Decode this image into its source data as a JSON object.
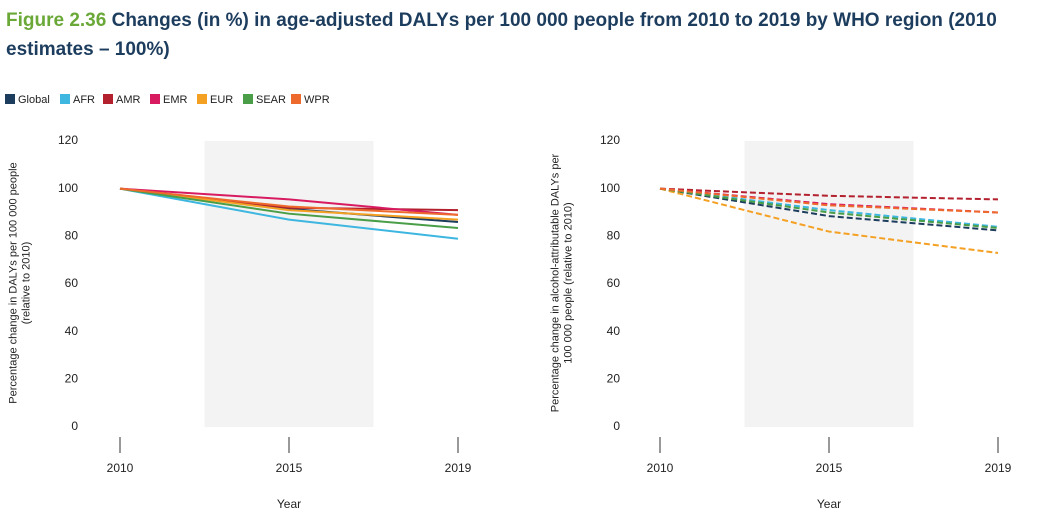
{
  "figure_label": "Figure 2.36",
  "title": "Changes (in %) in age-adjusted DALYs per 100 000 people from 2010 to 2019 by WHO region (2010 estimates – 100%)",
  "chart_data": [
    {
      "type": "line",
      "line_style": "solid",
      "categories": [
        "2010",
        "2015",
        "2019"
      ],
      "xlabel": "Year",
      "ylabel": [
        "Percentage change in DALYs per 100 000 people",
        "(relative to 2010)"
      ],
      "ylim": [
        0,
        120
      ],
      "yticks": [
        0,
        20,
        40,
        60,
        80,
        100,
        120
      ],
      "grid": false,
      "series": [
        {
          "name": "Global",
          "color": "#1d3d5e",
          "values": [
            100,
            91.5,
            86
          ]
        },
        {
          "name": "AFR",
          "color": "#3db6e0",
          "values": [
            100,
            87,
            79
          ]
        },
        {
          "name": "AMR",
          "color": "#b3202e",
          "values": [
            100,
            92,
            91
          ]
        },
        {
          "name": "EMR",
          "color": "#d81b60",
          "values": [
            100,
            95.5,
            89
          ]
        },
        {
          "name": "EUR",
          "color": "#f4a023",
          "values": [
            100,
            91,
            87
          ]
        },
        {
          "name": "SEAR",
          "color": "#4a9e48",
          "values": [
            100,
            89.5,
            83.5
          ]
        },
        {
          "name": "WPR",
          "color": "#ee6a2c",
          "values": [
            100,
            92.5,
            89
          ]
        }
      ]
    },
    {
      "type": "line",
      "line_style": "dashed",
      "categories": [
        "2010",
        "2015",
        "2019"
      ],
      "xlabel": "Year",
      "ylabel": [
        "Percentage change in alcohol-attributable DALYs per",
        "100 000 people (relative to 2010)"
      ],
      "ylim": [
        0,
        120
      ],
      "yticks": [
        0,
        20,
        40,
        60,
        80,
        100,
        120
      ],
      "grid": false,
      "series": [
        {
          "name": "Global",
          "color": "#1d3d5e",
          "values": [
            100,
            88.5,
            82.5
          ]
        },
        {
          "name": "AFR",
          "color": "#3db6e0",
          "values": [
            100,
            91,
            84
          ]
        },
        {
          "name": "AMR",
          "color": "#b3202e",
          "values": [
            100,
            97,
            95.5
          ]
        },
        {
          "name": "EMR",
          "color": "#d81b60",
          "values": [
            100,
            93.5,
            90
          ]
        },
        {
          "name": "EUR",
          "color": "#f4a023",
          "values": [
            100,
            82,
            73
          ]
        },
        {
          "name": "SEAR",
          "color": "#4a9e48",
          "values": [
            100,
            90,
            83.5
          ]
        },
        {
          "name": "WPR",
          "color": "#ee6a2c",
          "values": [
            100,
            93,
            90
          ]
        }
      ]
    }
  ]
}
